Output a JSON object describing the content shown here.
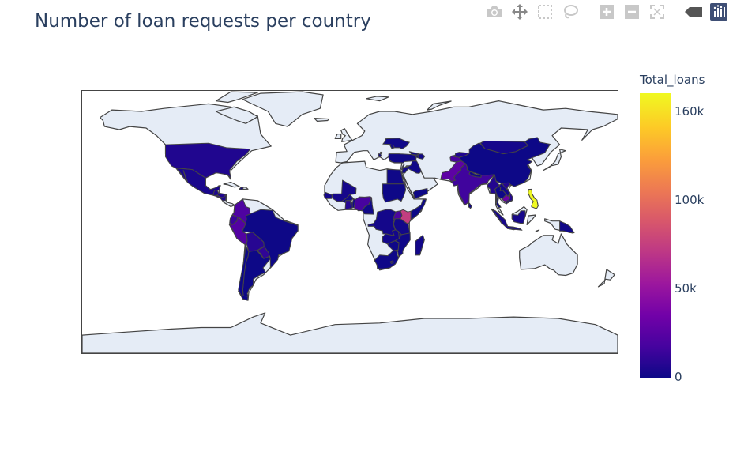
{
  "chart_data": {
    "type": "choropleth",
    "title": "Number of loan requests per country",
    "colorbar": {
      "title": "Total_loans",
      "colorscale": "plasma",
      "range": [
        0,
        160000
      ],
      "ticks": [
        {
          "label": "160k",
          "value": 160000
        },
        {
          "label": "100k",
          "value": 100000
        },
        {
          "label": "50k",
          "value": 50000
        },
        {
          "label": "0",
          "value": 0
        }
      ]
    },
    "land_color": "#e5ecf6",
    "border_color": "#444444",
    "countries": [
      {
        "name": "Philippines",
        "value": 160000
      },
      {
        "name": "Kenya",
        "value": 75000
      },
      {
        "name": "Pakistan",
        "value": 27000
      },
      {
        "name": "Peru",
        "value": 23000
      },
      {
        "name": "India",
        "value": 16000
      },
      {
        "name": "Cambodia",
        "value": 34000
      },
      {
        "name": "Colombia",
        "value": 21000
      },
      {
        "name": "Nigeria",
        "value": 18000
      },
      {
        "name": "Uganda",
        "value": 20000
      },
      {
        "name": "Ecuador",
        "value": 14000
      },
      {
        "name": "Tajikistan",
        "value": 19000
      },
      {
        "name": "Paraguay",
        "value": 11000
      },
      {
        "name": "El Salvador",
        "value": 12000
      },
      {
        "name": "Ghana",
        "value": 8000
      },
      {
        "name": "Bolivia",
        "value": 8000
      },
      {
        "name": "Vietnam",
        "value": 7000
      },
      {
        "name": "Mexico",
        "value": 4000
      },
      {
        "name": "Brazil",
        "value": 200
      },
      {
        "name": "Chile",
        "value": 300
      },
      {
        "name": "Argentina",
        "value": 100
      },
      {
        "name": "Guatemala",
        "value": 5000
      },
      {
        "name": "Honduras",
        "value": 6000
      },
      {
        "name": "Nicaragua",
        "value": 5000
      },
      {
        "name": "Haiti",
        "value": 2000
      },
      {
        "name": "Mali",
        "value": 2800
      },
      {
        "name": "Senegal",
        "value": 2500
      },
      {
        "name": "Burkina Faso",
        "value": 1000
      },
      {
        "name": "Togo",
        "value": 2000
      },
      {
        "name": "Benin",
        "value": 1500
      },
      {
        "name": "Cameroon",
        "value": 1000
      },
      {
        "name": "DR Congo",
        "value": 2200
      },
      {
        "name": "Rwanda",
        "value": 6000
      },
      {
        "name": "Tanzania",
        "value": 1500
      },
      {
        "name": "Zambia",
        "value": 2000
      },
      {
        "name": "Zimbabwe",
        "value": 1000
      },
      {
        "name": "Mozambique",
        "value": 800
      },
      {
        "name": "Malawi",
        "value": 1000
      },
      {
        "name": "Madagascar",
        "value": 2000
      },
      {
        "name": "South Africa",
        "value": 500
      },
      {
        "name": "Lesotho",
        "value": 900
      },
      {
        "name": "Egypt",
        "value": 1000
      },
      {
        "name": "Sudan",
        "value": 200
      },
      {
        "name": "Somalia",
        "value": 100
      },
      {
        "name": "Turkey",
        "value": 1000
      },
      {
        "name": "Lebanon",
        "value": 1500
      },
      {
        "name": "Jordan",
        "value": 1300
      },
      {
        "name": "Palestine",
        "value": 1800
      },
      {
        "name": "Georgia",
        "value": 1000
      },
      {
        "name": "Armenia",
        "value": 2800
      },
      {
        "name": "Azerbaijan",
        "value": 1100
      },
      {
        "name": "Kyrgyzstan",
        "value": 6000
      },
      {
        "name": "Yemen",
        "value": 300
      },
      {
        "name": "Iraq",
        "value": 800
      },
      {
        "name": "Mongolia",
        "value": 2800
      },
      {
        "name": "China",
        "value": 100
      },
      {
        "name": "Nepal",
        "value": 600
      },
      {
        "name": "Myanmar",
        "value": 7000
      },
      {
        "name": "Thailand",
        "value": 700
      },
      {
        "name": "Laos",
        "value": 2000
      },
      {
        "name": "Indonesia",
        "value": 3000
      },
      {
        "name": "Timor-Leste",
        "value": 2000
      },
      {
        "name": "Papua New Guinea",
        "value": 1000
      },
      {
        "name": "Sri Lanka",
        "value": 2000
      },
      {
        "name": "Moldova",
        "value": 1000
      },
      {
        "name": "Ukraine",
        "value": 1000
      },
      {
        "name": "Albania",
        "value": 1500
      },
      {
        "name": "Kosovo",
        "value": 2000
      },
      {
        "name": "United States",
        "value": 6000
      }
    ]
  },
  "modebar": {
    "buttons": [
      "camera-icon",
      "pan-icon",
      "box-select-icon",
      "lasso-icon",
      "zoom-in-icon",
      "zoom-out-icon",
      "reset-icon",
      "hover-icon",
      "plotly-logo-icon"
    ]
  }
}
